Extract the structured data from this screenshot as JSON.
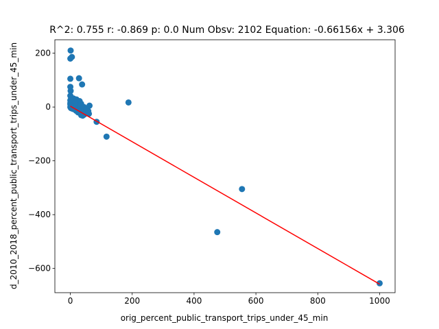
{
  "chart_data": {
    "type": "scatter",
    "title": "R^2: 0.755 r: -0.869 p: 0.0 Num Obsv: 2102 Equation: -0.66156x + 3.306",
    "xlabel": "orig_percent_public_transport_trips_under_45_min",
    "ylabel": "d_2010_2018_percent_public_transport_trips_under_45_min",
    "xlim": [
      -50,
      1050
    ],
    "ylim": [
      -690,
      250
    ],
    "xticks": [
      0,
      200,
      400,
      600,
      800,
      1000
    ],
    "yticks": [
      -600,
      -400,
      -200,
      0,
      200
    ],
    "xtick_labels": [
      "0",
      "200",
      "400",
      "600",
      "800",
      "1000"
    ],
    "ytick_labels": [
      "−600",
      "−400",
      "−200",
      "0",
      "200"
    ],
    "grid": false,
    "colors": {
      "points": "#1f77b4",
      "fit_line": "#ff0000"
    },
    "fit_line": {
      "slope": -0.66156,
      "intercept": 3.306,
      "x_range": [
        0,
        1000
      ]
    },
    "points": [
      [
        1,
        210
      ],
      [
        0,
        180
      ],
      [
        5,
        186
      ],
      [
        0,
        105
      ],
      [
        28,
        107
      ],
      [
        38,
        84
      ],
      [
        0,
        75
      ],
      [
        1,
        60
      ],
      [
        0,
        42
      ],
      [
        3,
        35
      ],
      [
        10,
        32
      ],
      [
        20,
        28
      ],
      [
        30,
        22
      ],
      [
        5,
        20
      ],
      [
        15,
        18
      ],
      [
        25,
        15
      ],
      [
        35,
        12
      ],
      [
        0,
        10
      ],
      [
        8,
        8
      ],
      [
        12,
        6
      ],
      [
        18,
        4
      ],
      [
        22,
        2
      ],
      [
        28,
        1
      ],
      [
        0,
        0
      ],
      [
        4,
        -2
      ],
      [
        10,
        -3
      ],
      [
        16,
        -5
      ],
      [
        24,
        -6
      ],
      [
        30,
        -8
      ],
      [
        38,
        -10
      ],
      [
        42,
        -15
      ],
      [
        48,
        -18
      ],
      [
        55,
        -20
      ],
      [
        60,
        -25
      ],
      [
        20,
        -12
      ],
      [
        25,
        -20
      ],
      [
        35,
        -30
      ],
      [
        40,
        -32
      ],
      [
        45,
        -28
      ],
      [
        50,
        -22
      ],
      [
        2,
        -4
      ],
      [
        6,
        -6
      ],
      [
        14,
        12
      ],
      [
        32,
        5
      ],
      [
        44,
        0
      ],
      [
        52,
        -10
      ],
      [
        58,
        -15
      ],
      [
        62,
        5
      ],
      [
        0,
        25
      ],
      [
        0,
        15
      ],
      [
        3,
        5
      ],
      [
        7,
        2
      ],
      [
        11,
        -8
      ],
      [
        19,
        -14
      ],
      [
        27,
        -18
      ],
      [
        33,
        -25
      ],
      [
        85,
        -55
      ],
      [
        117,
        -110
      ],
      [
        188,
        17
      ],
      [
        555,
        -305
      ],
      [
        475,
        -465
      ],
      [
        1000,
        -655
      ]
    ]
  }
}
